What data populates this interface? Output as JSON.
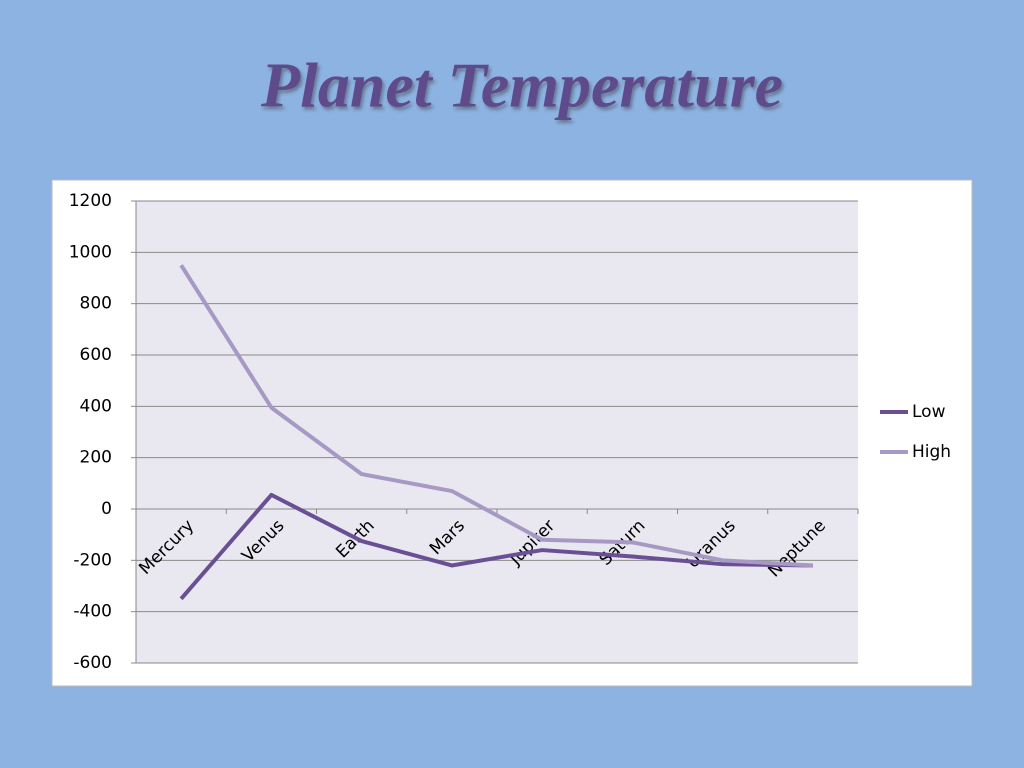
{
  "chart_data": {
    "type": "line",
    "title": "Planet Temperature",
    "categories": [
      "Mercury",
      "Venus",
      "Earth",
      "Mars",
      "Jupiter",
      "Saturn",
      "Uranus",
      "Neptune"
    ],
    "series": [
      {
        "name": "Low",
        "color": "#6a4f94",
        "values": [
          -350,
          55,
          -125,
          -220,
          -160,
          -185,
          -215,
          -220
        ]
      },
      {
        "name": "High",
        "color": "#a699c4",
        "values": [
          950,
          395,
          136,
          70,
          -120,
          -130,
          -200,
          -220
        ]
      }
    ],
    "ylim": [
      -600,
      1200
    ],
    "yticks": [
      -600,
      -400,
      -200,
      0,
      200,
      400,
      600,
      800,
      1000,
      1200
    ],
    "grid": true,
    "legend": "right"
  }
}
